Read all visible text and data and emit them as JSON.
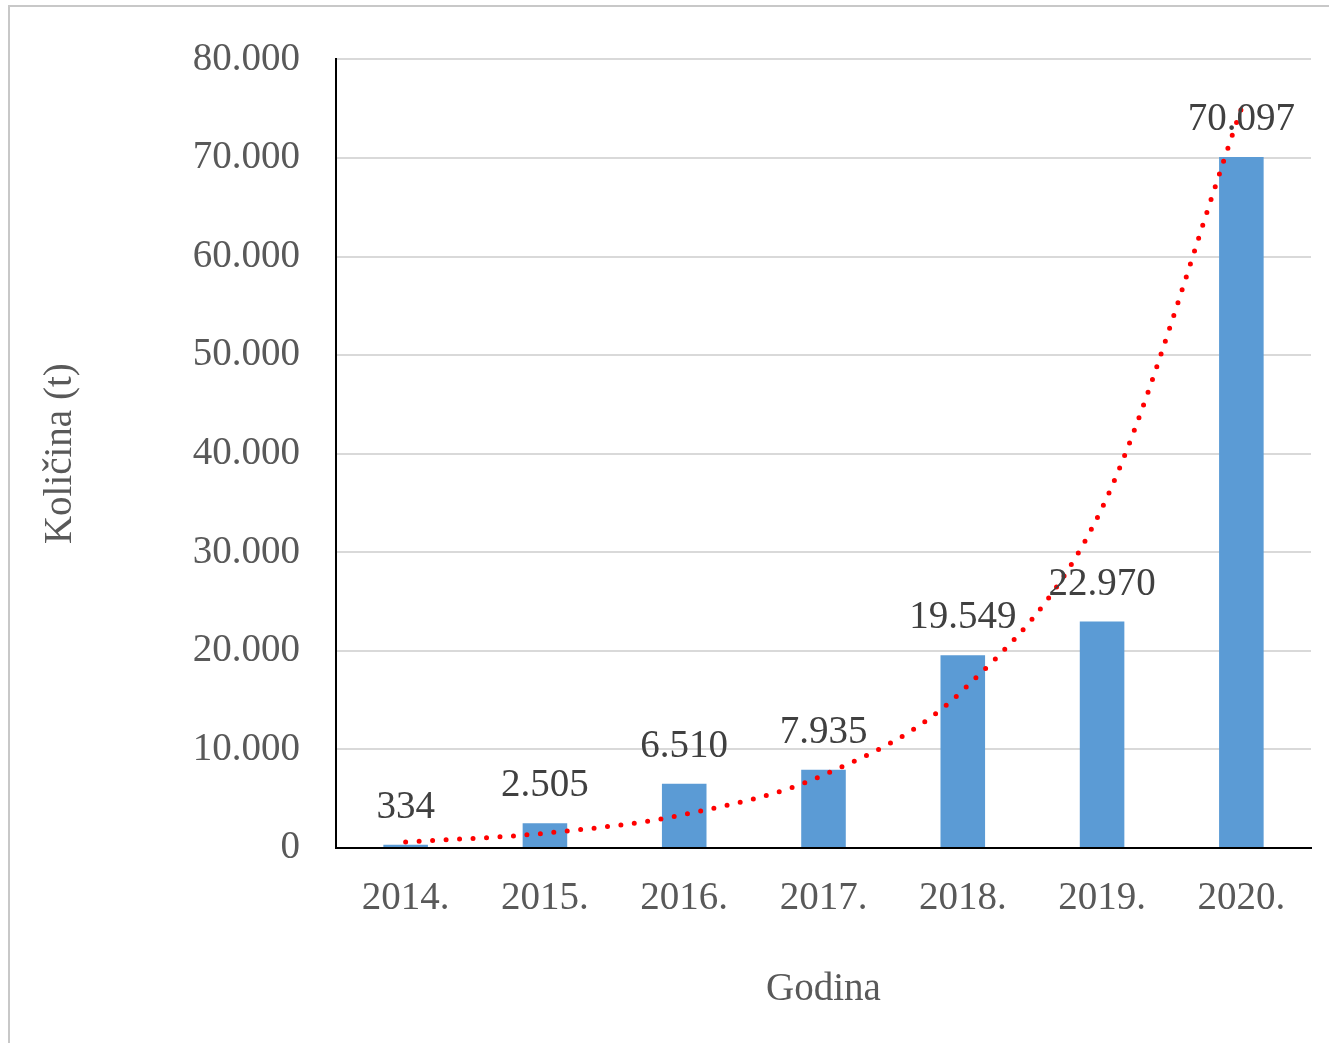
{
  "chart_data": {
    "type": "bar",
    "xlabel": "Godina",
    "ylabel": "Količina (t)",
    "categories": [
      "2014.",
      "2015.",
      "2016.",
      "2017.",
      "2018.",
      "2019.",
      "2020."
    ],
    "series": [
      {
        "color": "#5b9bd5",
        "values": [
          334,
          2505,
          6510,
          7935,
          19549,
          22970,
          70097
        ],
        "value_labels": [
          "334",
          "2.505",
          "6.510",
          "7.935",
          "19.549",
          "22.970",
          "70.097"
        ]
      },
      {
        "type": "line",
        "color": "#ff0000",
        "line_style": "dotted",
        "marker": "none",
        "values": [
          600,
          1500,
          3400,
          7400,
          16000,
          34500,
          75000
        ]
      }
    ],
    "ylim": [
      0,
      80000
    ],
    "yticks": [
      0,
      {
        "value": 10000,
        "label": "10.000"
      },
      {
        "value": 20000,
        "label": "20.000"
      },
      {
        "value": 30000,
        "label": "30.000"
      },
      {
        "value": 40000,
        "label": "40.000"
      },
      {
        "value": 50000,
        "label": "50.000"
      },
      {
        "value": 60000,
        "label": "60.000"
      },
      {
        "value": 70000,
        "label": "70.000"
      },
      {
        "value": 80000,
        "label": "80.000"
      }
    ],
    "grid": "y"
  }
}
